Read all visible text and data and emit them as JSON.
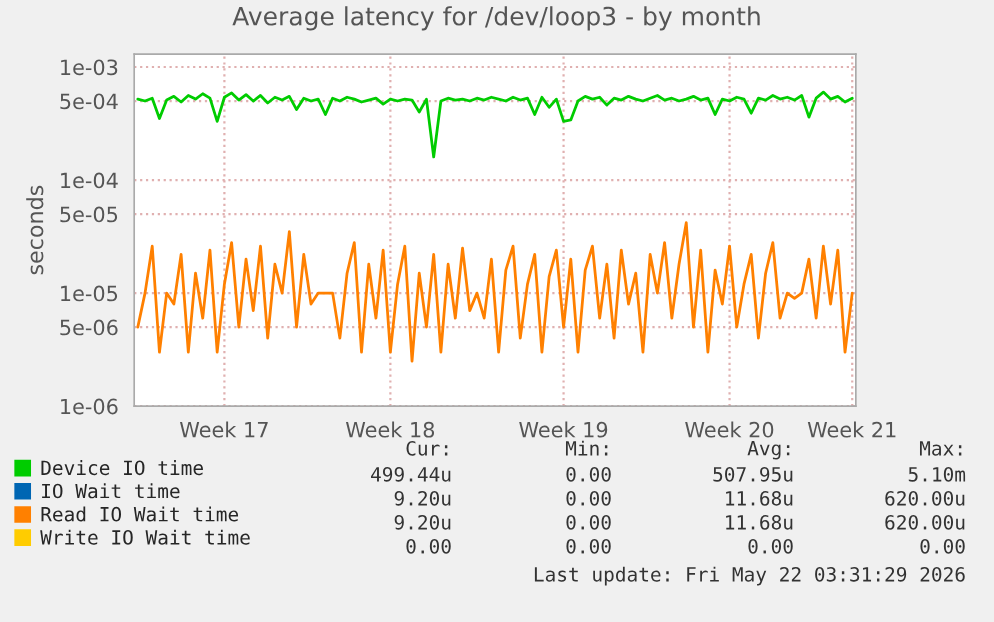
{
  "chart_data": {
    "type": "line",
    "title": "Average latency for /dev/loop3 - by month",
    "ylabel": "seconds",
    "log": "y",
    "categories": [
      null,
      null,
      null,
      null,
      null,
      null,
      null,
      null,
      null,
      null,
      null,
      null,
      "Week 17",
      null,
      null,
      null,
      null,
      null,
      null,
      null,
      null,
      null,
      null,
      null,
      null,
      null,
      null,
      null,
      null,
      null,
      null,
      null,
      null,
      null,
      null,
      "Week 18",
      null,
      null,
      null,
      null,
      null,
      null,
      null,
      null,
      null,
      null,
      null,
      null,
      null,
      null,
      null,
      null,
      null,
      null,
      null,
      null,
      null,
      null,
      null,
      "Week 19",
      null,
      null,
      null,
      null,
      null,
      null,
      null,
      null,
      null,
      null,
      null,
      null,
      null,
      null,
      null,
      null,
      null,
      null,
      null,
      null,
      null,
      null,
      "Week 20",
      null,
      null,
      null,
      null,
      null,
      null,
      null,
      null,
      null,
      null,
      null,
      null,
      null,
      null,
      null,
      null,
      "Week 21"
    ],
    "ylim": [
      1e-06,
      0.0013
    ],
    "yticks": [
      {
        "value": 1e-06,
        "label": "1e-06"
      },
      {
        "value": 5e-06,
        "label": "5e-06"
      },
      {
        "value": 1e-05,
        "label": "1e-05"
      },
      {
        "value": 5e-05,
        "label": "5e-05"
      },
      {
        "value": 0.0001,
        "label": "1e-04"
      },
      {
        "value": 0.0005,
        "label": "5e-04"
      },
      {
        "value": 0.001,
        "label": "1e-03"
      }
    ],
    "grid": true,
    "legend": "bottom",
    "series": [
      {
        "name": "Device IO time",
        "color": "#00cc00",
        "values": [
          0.00052,
          0.0005,
          0.00053,
          0.00035,
          0.00051,
          0.00055,
          0.00049,
          0.00056,
          0.00052,
          0.00058,
          0.00053,
          0.00033,
          0.00054,
          0.00059,
          0.00051,
          0.00057,
          0.0005,
          0.00056,
          0.00048,
          0.00054,
          0.00051,
          0.00055,
          0.00042,
          0.00053,
          0.0005,
          0.00052,
          0.00038,
          0.00053,
          0.0005,
          0.00054,
          0.00052,
          0.00049,
          0.00051,
          0.00053,
          0.00047,
          0.00052,
          0.0005,
          0.00052,
          0.00051,
          0.0004,
          0.00052,
          0.00016,
          0.0005,
          0.00053,
          0.00051,
          0.00052,
          0.0005,
          0.00053,
          0.00051,
          0.00054,
          0.00052,
          0.0005,
          0.00054,
          0.00051,
          0.00053,
          0.00038,
          0.00054,
          0.00044,
          0.00052,
          0.00033,
          0.00034,
          0.0005,
          0.00055,
          0.00052,
          0.00054,
          0.00046,
          0.00053,
          0.00051,
          0.00055,
          0.00052,
          0.0005,
          0.00053,
          0.00056,
          0.00051,
          0.00053,
          0.0005,
          0.00052,
          0.00055,
          0.00051,
          0.00053,
          0.00038,
          0.00052,
          0.0005,
          0.00054,
          0.00052,
          0.00039,
          0.00053,
          0.00051,
          0.00056,
          0.00052,
          0.00054,
          0.00051,
          0.00056,
          0.00036,
          0.00053,
          0.0006,
          0.00052,
          0.00055,
          0.00049,
          0.00053
        ]
      },
      {
        "name": "IO Wait time",
        "color": "#0066b3",
        "values": [
          null,
          null,
          null,
          null,
          null,
          null,
          null,
          null,
          null,
          null,
          null,
          null,
          null,
          null,
          null,
          null,
          null,
          null,
          null,
          null,
          null,
          null,
          null,
          null,
          null,
          null,
          null,
          null,
          null,
          null,
          null,
          null,
          null,
          null,
          null,
          null,
          null,
          null,
          null,
          null,
          null,
          null,
          null,
          null,
          null,
          null,
          null,
          null,
          null,
          null,
          null,
          null,
          null,
          null,
          null,
          null,
          null,
          null,
          null,
          null,
          null,
          null,
          null,
          null,
          null,
          null,
          null,
          null,
          null,
          null,
          null,
          null,
          null,
          null,
          null,
          null,
          null,
          null,
          null,
          null,
          null,
          null,
          null,
          null,
          null,
          null,
          null,
          null,
          null,
          null,
          null,
          null,
          null,
          null,
          null,
          null,
          null,
          null,
          null,
          null
        ]
      },
      {
        "name": "Read IO Wait time",
        "color": "#ff8000",
        "values": [
          5e-06,
          1e-05,
          2.6e-05,
          3e-06,
          1e-05,
          8e-06,
          2.2e-05,
          3e-06,
          1.5e-05,
          6e-06,
          2.4e-05,
          3e-06,
          1.2e-05,
          2.8e-05,
          5e-06,
          2e-05,
          7e-06,
          2.6e-05,
          4e-06,
          1.8e-05,
          1e-05,
          3.5e-05,
          5e-06,
          2.2e-05,
          8e-06,
          1e-05,
          1e-05,
          1e-05,
          4e-06,
          1.5e-05,
          2.8e-05,
          3e-06,
          1.8e-05,
          6e-06,
          2.4e-05,
          3e-06,
          1.2e-05,
          2.6e-05,
          2.5e-06,
          1.5e-05,
          5e-06,
          2.2e-05,
          3e-06,
          1.8e-05,
          6e-06,
          2.5e-05,
          7e-06,
          1e-05,
          6e-06,
          2e-05,
          3e-06,
          1.6e-05,
          2.6e-05,
          4e-06,
          1.2e-05,
          2.2e-05,
          3e-06,
          1.4e-05,
          2.4e-05,
          5e-06,
          2e-05,
          3e-06,
          1.6e-05,
          2.6e-05,
          6e-06,
          1.8e-05,
          4e-06,
          2.4e-05,
          8e-06,
          1.5e-05,
          3e-06,
          2.2e-05,
          1e-05,
          2.8e-05,
          6e-06,
          1.8e-05,
          4.2e-05,
          5e-06,
          2.4e-05,
          3e-06,
          1.6e-05,
          8e-06,
          2.6e-05,
          5e-06,
          1.2e-05,
          2.2e-05,
          4e-06,
          1.5e-05,
          2.8e-05,
          6e-06,
          1e-05,
          9e-06,
          1e-05,
          2e-05,
          6e-06,
          2.6e-05,
          8e-06,
          2.4e-05,
          3e-06,
          1e-05
        ]
      },
      {
        "name": "Write IO Wait time",
        "color": "#ffcc00",
        "values": [
          null,
          null,
          null,
          null,
          null,
          null,
          null,
          null,
          null,
          null,
          null,
          null,
          null,
          null,
          null,
          null,
          null,
          null,
          null,
          null,
          null,
          null,
          null,
          null,
          null,
          null,
          null,
          null,
          null,
          null,
          null,
          null,
          null,
          null,
          null,
          null,
          null,
          null,
          null,
          null,
          null,
          null,
          null,
          null,
          null,
          null,
          null,
          null,
          null,
          null,
          null,
          null,
          null,
          null,
          null,
          null,
          null,
          null,
          null,
          null,
          null,
          null,
          null,
          null,
          null,
          null,
          null,
          null,
          null,
          null,
          null,
          null,
          null,
          null,
          null,
          null,
          null,
          null,
          null,
          null,
          null,
          null,
          null,
          null,
          null,
          null,
          null,
          null,
          null,
          null,
          null,
          null,
          null,
          null,
          null,
          null,
          null,
          null,
          null,
          null
        ]
      }
    ],
    "annotations": [
      "Cur:",
      "Min:",
      "Avg:",
      "Max:",
      "499.44u",
      "0.00",
      "507.95u",
      "5.10m",
      "9.20u",
      "0.00",
      "11.68u",
      "620.00u",
      "9.20u",
      "0.00",
      "11.68u",
      "620.00u",
      "0.00",
      "0.00",
      "0.00",
      "0.00",
      "Last update: Fri May 22 03:31:29 2026"
    ]
  }
}
